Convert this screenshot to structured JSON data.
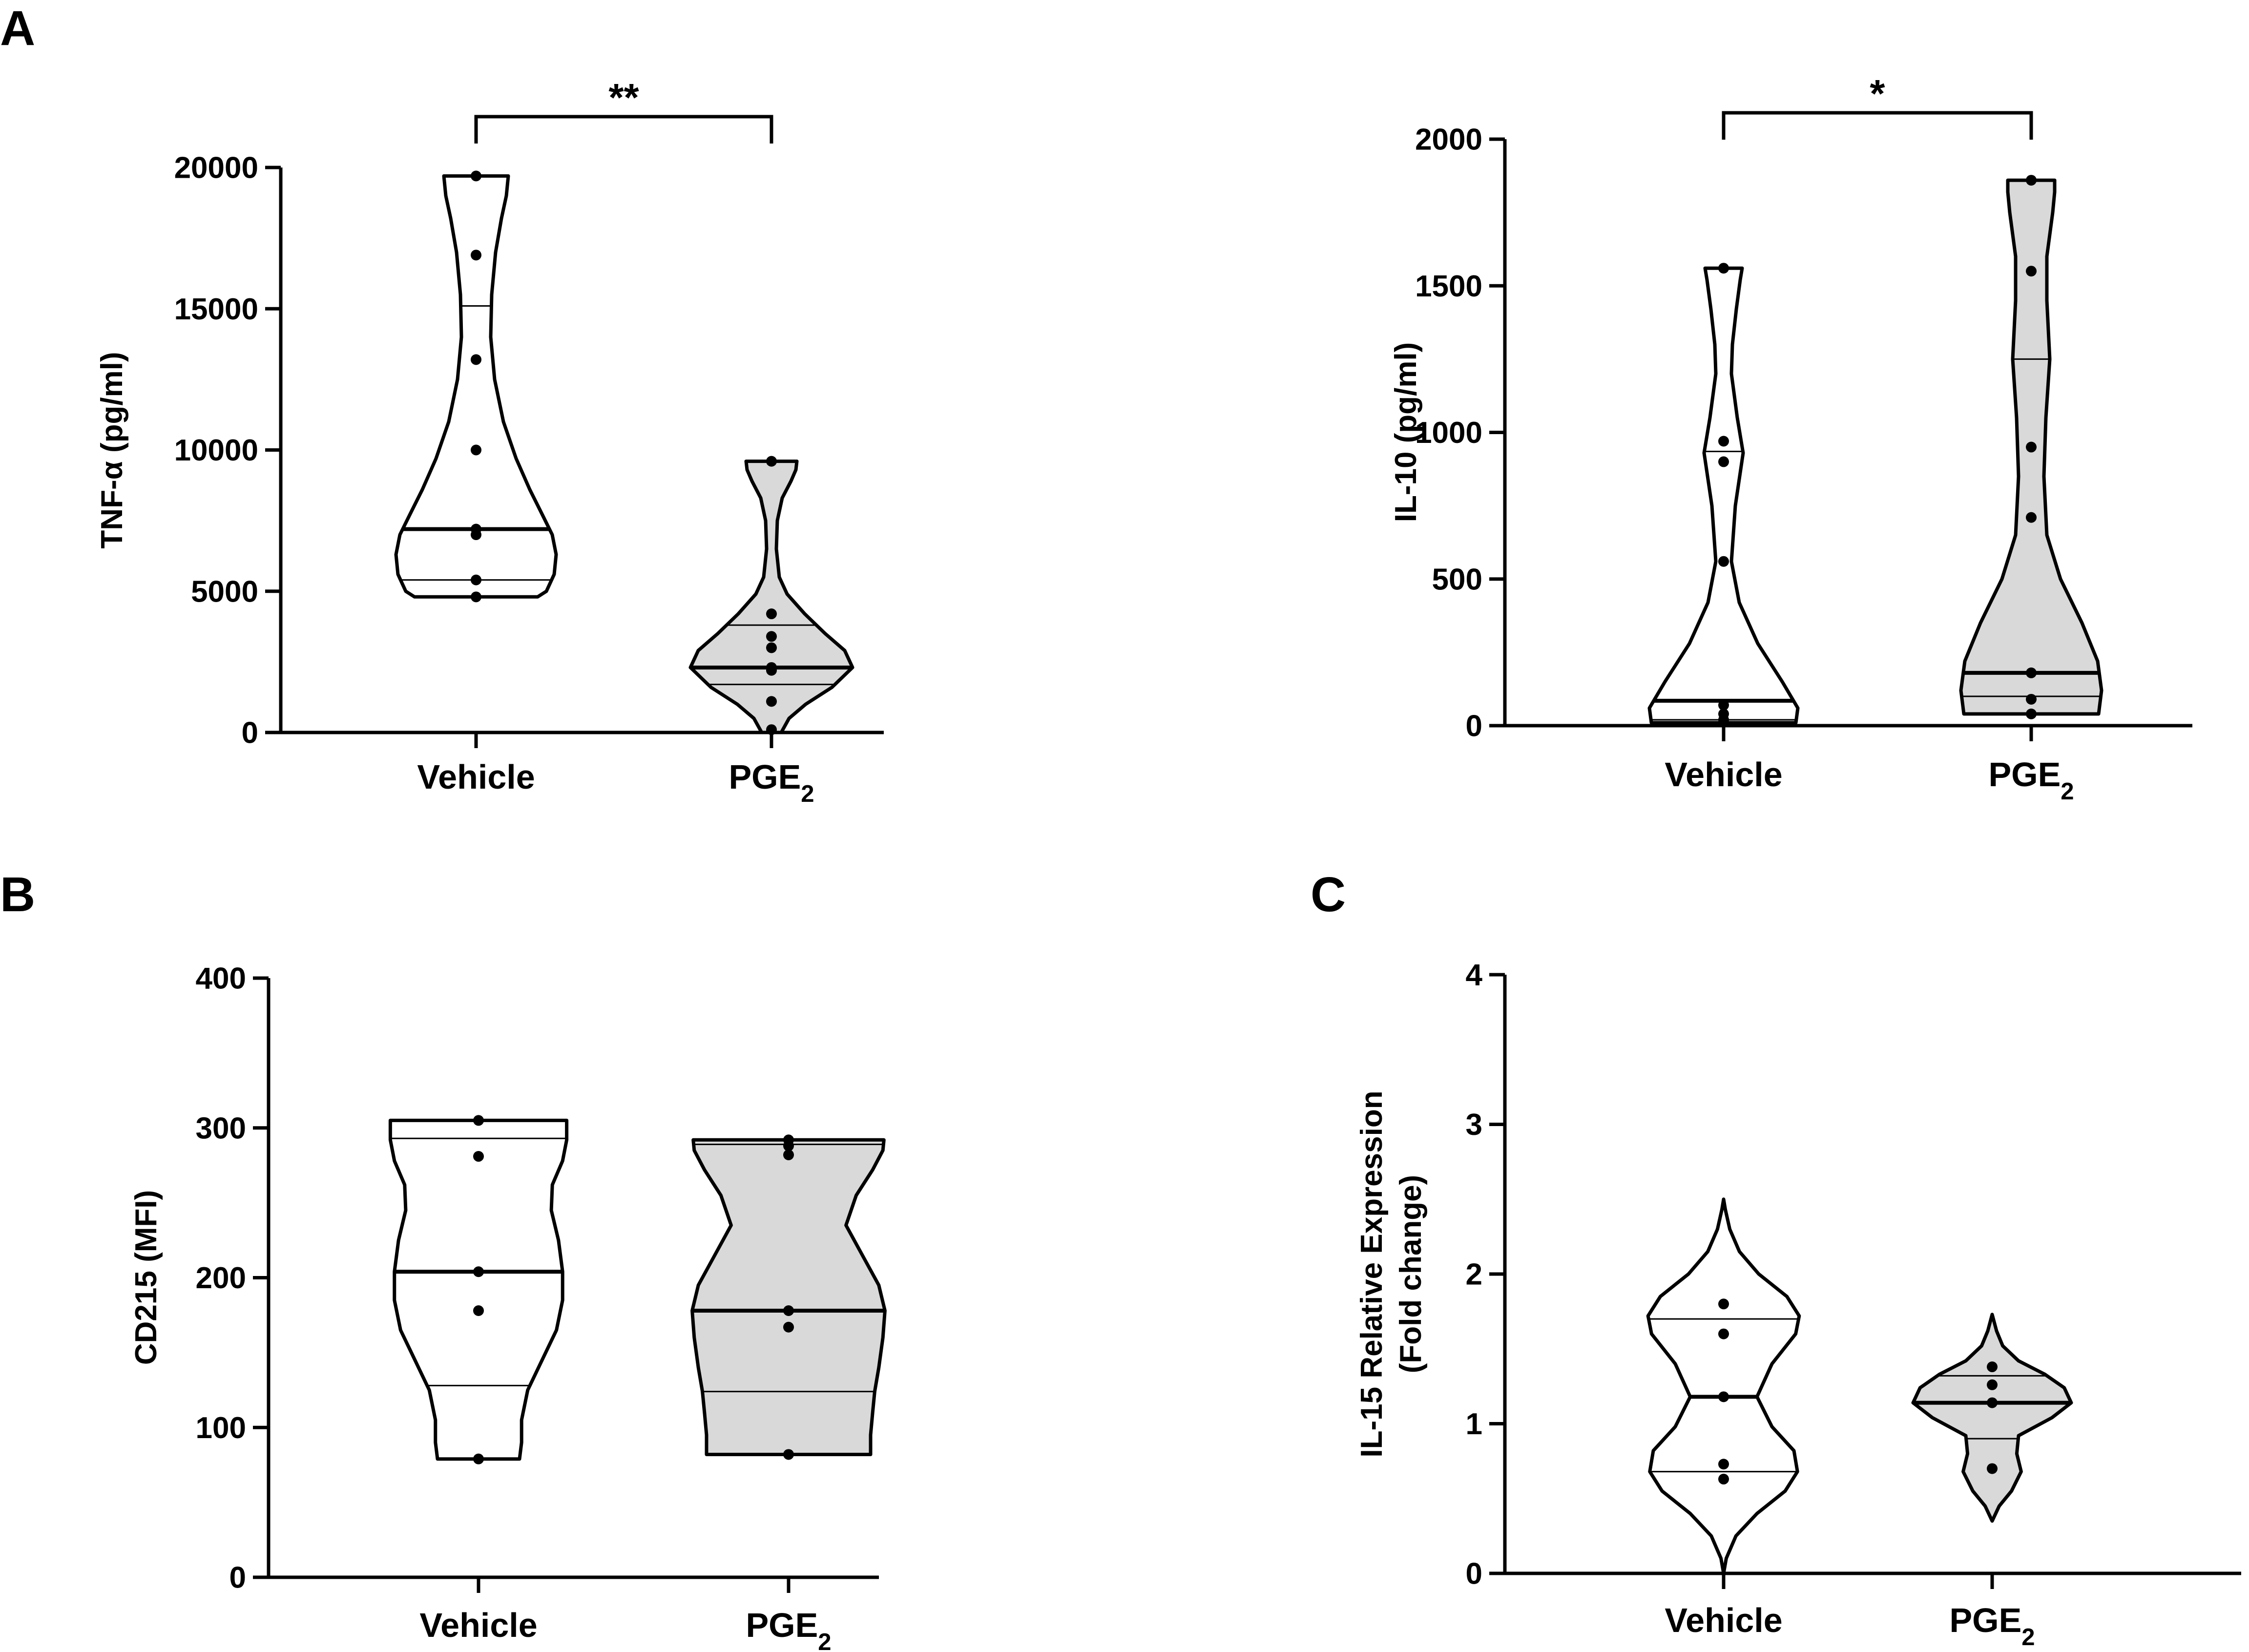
{
  "figure": {
    "panel_letters": [
      "A",
      "B",
      "C"
    ]
  },
  "chart_data": [
    {
      "panel": "A",
      "type": "violin",
      "ylabel": "TNF-α (pg/ml)",
      "ylim": [
        0,
        20000
      ],
      "yticks": [
        0,
        5000,
        10000,
        15000,
        20000
      ],
      "ytick_labels": [
        "0",
        "5000",
        "10000",
        "15000",
        "20000"
      ],
      "categories": [
        "Vehicle",
        "PGE2"
      ],
      "category_labels": [
        {
          "main": "Vehicle",
          "sub": ""
        },
        {
          "main": "PGE",
          "sub": "2"
        }
      ],
      "series": [
        {
          "fill": "#ffffff",
          "points": [
            19700,
            16900,
            13200,
            10000,
            7200,
            7000,
            5400,
            4800
          ],
          "median": 7200,
          "quartiles": [
            5400,
            15100
          ],
          "min": 4800,
          "max": 19700,
          "outline": [
            [
              4800,
              0.63
            ],
            [
              5000,
              0.72
            ],
            [
              5600,
              0.8
            ],
            [
              6300,
              0.82
            ],
            [
              7000,
              0.78
            ],
            [
              7700,
              0.68
            ],
            [
              8600,
              0.55
            ],
            [
              9700,
              0.41
            ],
            [
              11000,
              0.28
            ],
            [
              12500,
              0.19
            ],
            [
              14000,
              0.15
            ],
            [
              15500,
              0.16
            ],
            [
              17000,
              0.2
            ],
            [
              18200,
              0.26
            ],
            [
              19000,
              0.31
            ],
            [
              19700,
              0.33
            ]
          ]
        },
        {
          "fill": "#d9d9d9",
          "points": [
            9600,
            4200,
            3400,
            3000,
            2300,
            2200,
            1100,
            100
          ],
          "median": 2300,
          "quartiles": [
            1700,
            3800
          ],
          "min": 0,
          "max": 9600,
          "outline": [
            [
              0,
              0.1
            ],
            [
              500,
              0.18
            ],
            [
              1000,
              0.35
            ],
            [
              1600,
              0.62
            ],
            [
              2300,
              0.83
            ],
            [
              2900,
              0.75
            ],
            [
              3500,
              0.55
            ],
            [
              4200,
              0.34
            ],
            [
              4900,
              0.16
            ],
            [
              5500,
              0.08
            ],
            [
              6500,
              0.05
            ],
            [
              7500,
              0.06
            ],
            [
              8300,
              0.11
            ],
            [
              8900,
              0.2
            ],
            [
              9300,
              0.25
            ],
            [
              9600,
              0.26
            ]
          ]
        }
      ],
      "significance": {
        "label": "**",
        "between": [
          0,
          1
        ],
        "y": 21800
      }
    },
    {
      "panel": "A",
      "type": "violin",
      "ylabel": "IL-10 (pg/ml)",
      "ylim": [
        0,
        2000
      ],
      "yticks": [
        0,
        500,
        1000,
        1500,
        2000
      ],
      "ytick_labels": [
        "0",
        "500",
        "1000",
        "1500",
        "2000"
      ],
      "categories": [
        "Vehicle",
        "PGE2"
      ],
      "category_labels": [
        {
          "main": "Vehicle",
          "sub": ""
        },
        {
          "main": "PGE",
          "sub": "2"
        }
      ],
      "series": [
        {
          "fill": "#ffffff",
          "points": [
            1560,
            970,
            900,
            560,
            70,
            40,
            20
          ],
          "median": 85,
          "quartiles": [
            20,
            935
          ],
          "min": 10,
          "max": 1560,
          "outline": [
            [
              10,
              0.74
            ],
            [
              60,
              0.76
            ],
            [
              150,
              0.6
            ],
            [
              280,
              0.35
            ],
            [
              420,
              0.16
            ],
            [
              560,
              0.08
            ],
            [
              750,
              0.12
            ],
            [
              930,
              0.2
            ],
            [
              1050,
              0.14
            ],
            [
              1200,
              0.08
            ],
            [
              1300,
              0.09
            ],
            [
              1420,
              0.13
            ],
            [
              1520,
              0.17
            ],
            [
              1560,
              0.19
            ]
          ]
        },
        {
          "fill": "#d9d9d9",
          "points": [
            1860,
            1550,
            950,
            710,
            180,
            90,
            40
          ],
          "median": 180,
          "quartiles": [
            100,
            1250
          ],
          "min": 40,
          "max": 1860,
          "outline": [
            [
              40,
              0.69
            ],
            [
              120,
              0.72
            ],
            [
              220,
              0.68
            ],
            [
              350,
              0.52
            ],
            [
              500,
              0.3
            ],
            [
              650,
              0.16
            ],
            [
              850,
              0.13
            ],
            [
              1050,
              0.15
            ],
            [
              1250,
              0.19
            ],
            [
              1450,
              0.16
            ],
            [
              1600,
              0.16
            ],
            [
              1750,
              0.22
            ],
            [
              1820,
              0.24
            ],
            [
              1860,
              0.24
            ]
          ]
        }
      ],
      "significance": {
        "label": "*",
        "between": [
          0,
          1
        ],
        "y": 2090
      }
    },
    {
      "panel": "B",
      "type": "violin",
      "ylabel": "CD215 (MFI)",
      "ylim": [
        0,
        400
      ],
      "yticks": [
        0,
        100,
        200,
        300,
        400
      ],
      "ytick_labels": [
        "0",
        "100",
        "200",
        "300",
        "400"
      ],
      "categories": [
        "Vehicle",
        "PGE2"
      ],
      "category_labels": [
        {
          "main": "Vehicle",
          "sub": ""
        },
        {
          "main": "PGE",
          "sub": "2"
        }
      ],
      "series": [
        {
          "fill": "#ffffff",
          "points": [
            305,
            281,
            204,
            178,
            79
          ],
          "median": 204,
          "quartiles": [
            128,
            293
          ],
          "min": 79,
          "max": 305,
          "outline": [
            [
              79,
              0.4
            ],
            [
              90,
              0.42
            ],
            [
              105,
              0.42
            ],
            [
              125,
              0.48
            ],
            [
              145,
              0.62
            ],
            [
              165,
              0.76
            ],
            [
              185,
              0.82
            ],
            [
              204,
              0.82
            ],
            [
              225,
              0.78
            ],
            [
              245,
              0.71
            ],
            [
              262,
              0.72
            ],
            [
              278,
              0.82
            ],
            [
              292,
              0.86
            ],
            [
              305,
              0.86
            ]
          ]
        },
        {
          "fill": "#d9d9d9",
          "points": [
            292,
            288,
            282,
            178,
            167,
            82
          ],
          "median": 178,
          "quartiles": [
            124,
            289
          ],
          "min": 82,
          "max": 292,
          "outline": [
            [
              82,
              0.8
            ],
            [
              95,
              0.8
            ],
            [
              110,
              0.82
            ],
            [
              124,
              0.84
            ],
            [
              140,
              0.88
            ],
            [
              160,
              0.92
            ],
            [
              178,
              0.94
            ],
            [
              195,
              0.88
            ],
            [
              215,
              0.72
            ],
            [
              235,
              0.56
            ],
            [
              255,
              0.66
            ],
            [
              272,
              0.82
            ],
            [
              285,
              0.92
            ],
            [
              292,
              0.93
            ]
          ]
        }
      ]
    },
    {
      "panel": "C",
      "type": "violin",
      "ylabel": "IL-15 Relative Expression",
      "ylabel2": "(Fold change)",
      "ylim": [
        0,
        4
      ],
      "yticks": [
        0,
        1,
        2,
        3,
        4
      ],
      "ytick_labels": [
        "0",
        "1",
        "2",
        "3",
        "4"
      ],
      "categories": [
        "Vehicle",
        "PGE2"
      ],
      "category_labels": [
        {
          "main": "Vehicle",
          "sub": ""
        },
        {
          "main": "PGE",
          "sub": "2"
        }
      ],
      "series": [
        {
          "fill": "#ffffff",
          "points": [
            1.8,
            1.6,
            1.18,
            0.73,
            0.63
          ],
          "median": 1.18,
          "quartiles": [
            0.68,
            1.7
          ],
          "min": 0.0,
          "max": 2.5,
          "outline": [
            [
              0,
              0.0
            ],
            [
              0.1,
              0.03
            ],
            [
              0.25,
              0.14
            ],
            [
              0.4,
              0.38
            ],
            [
              0.55,
              0.7
            ],
            [
              0.68,
              0.84
            ],
            [
              0.82,
              0.8
            ],
            [
              0.98,
              0.55
            ],
            [
              1.18,
              0.38
            ],
            [
              1.4,
              0.55
            ],
            [
              1.6,
              0.82
            ],
            [
              1.72,
              0.86
            ],
            [
              1.85,
              0.72
            ],
            [
              2.0,
              0.4
            ],
            [
              2.15,
              0.18
            ],
            [
              2.3,
              0.07
            ],
            [
              2.43,
              0.02
            ],
            [
              2.5,
              0.0
            ]
          ]
        },
        {
          "fill": "#d9d9d9",
          "points": [
            1.38,
            1.26,
            1.14,
            0.7
          ],
          "median": 1.14,
          "quartiles": [
            0.9,
            1.32
          ],
          "min": 0.35,
          "max": 1.73,
          "outline": [
            [
              0.35,
              0.0
            ],
            [
              0.45,
              0.08
            ],
            [
              0.55,
              0.22
            ],
            [
              0.68,
              0.33
            ],
            [
              0.8,
              0.28
            ],
            [
              0.92,
              0.3
            ],
            [
              1.04,
              0.68
            ],
            [
              1.14,
              0.9
            ],
            [
              1.24,
              0.82
            ],
            [
              1.33,
              0.6
            ],
            [
              1.42,
              0.3
            ],
            [
              1.52,
              0.12
            ],
            [
              1.62,
              0.05
            ],
            [
              1.73,
              0.0
            ]
          ]
        }
      ]
    }
  ]
}
